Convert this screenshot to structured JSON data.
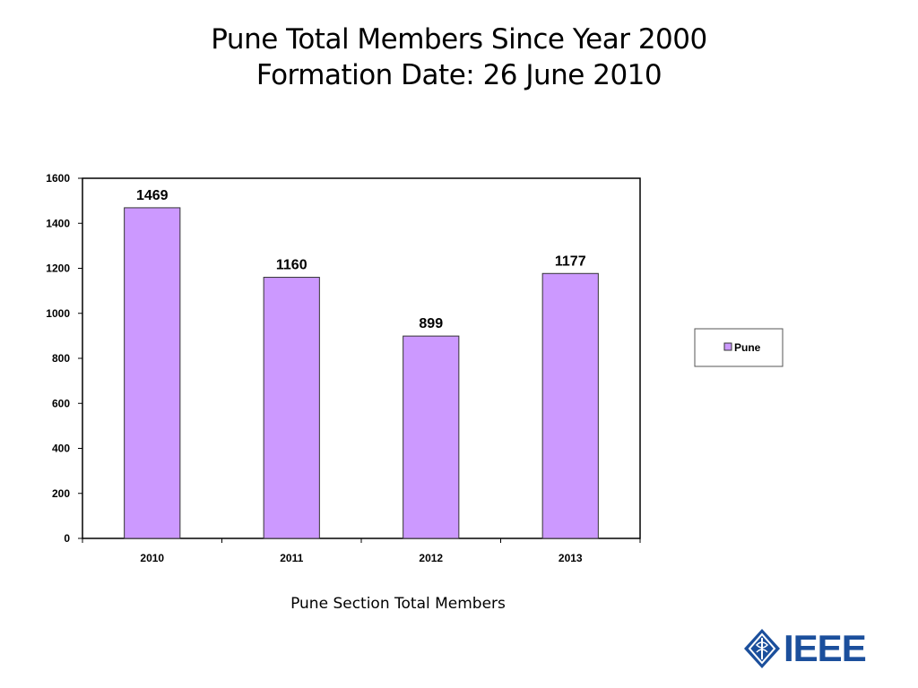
{
  "slide": {
    "title_line1": "Pune Total Members Since Year 2000",
    "title_line2": "Formation Date: 26 June 2010",
    "caption": "Pune Section Total Members",
    "logo_text": "IEEE"
  },
  "colors": {
    "bar_fill": "#cc99ff",
    "bar_stroke": "#333333",
    "axis": "#000000"
  },
  "chart_data": {
    "type": "bar",
    "title": "",
    "xlabel": "",
    "ylabel": "",
    "categories": [
      "2010",
      "2011",
      "2012",
      "2013"
    ],
    "series": [
      {
        "name": "Pune",
        "values": [
          1469,
          1160,
          899,
          1177
        ]
      }
    ],
    "ylim": [
      0,
      1600
    ],
    "yticks": [
      0,
      200,
      400,
      600,
      800,
      1000,
      1200,
      1400,
      1600
    ],
    "data_labels": [
      "1469",
      "1160",
      "899",
      "1177"
    ],
    "grid": false,
    "legend_position": "right"
  }
}
